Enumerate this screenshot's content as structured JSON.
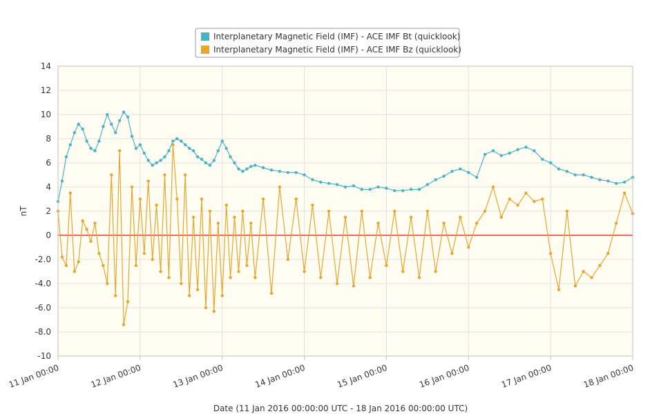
{
  "chart_data": {
    "type": "line",
    "title": "",
    "xlabel": "Date (11 Jan 2016 00:00:00 UTC - 18 Jan 2016 00:00:00 UTC)",
    "ylabel": "nT",
    "x_unit": "days since 11 Jan 2016 00:00 UTC",
    "xlim": [
      0,
      7
    ],
    "ylim": [
      -10,
      14
    ],
    "x_ticks": [
      0,
      1,
      2,
      3,
      4,
      5,
      6,
      7
    ],
    "x_tick_labels": [
      "11 Jan 00:00",
      "12 Jan 00:00",
      "13 Jan 00:00",
      "14 Jan 00:00",
      "15 Jan 00:00",
      "16 Jan 00:00",
      "17 Jan 00:00",
      "18 Jan 00:00"
    ],
    "y_ticks": [
      -10,
      -8,
      -6,
      -4,
      -2,
      0,
      2,
      4,
      6,
      8,
      10,
      12,
      14
    ],
    "y_tick_labels": [
      "-10",
      "-8.0",
      "-6.0",
      "-4.0",
      "-2.0",
      "0",
      "2",
      "4",
      "6",
      "8",
      "10",
      "12",
      "14"
    ],
    "grid": true,
    "legend_position": "top-center",
    "plot_background": "#fffdf1",
    "reference_line": {
      "y": 0,
      "color": "#ee3333"
    },
    "series": [
      {
        "name": "Interplanetary Magnetic Field (IMF) - ACE IMF Bt (quicklook)",
        "color": "#4bb1c4",
        "x": [
          0,
          0.05,
          0.1,
          0.15,
          0.2,
          0.25,
          0.3,
          0.35,
          0.4,
          0.45,
          0.5,
          0.55,
          0.6,
          0.65,
          0.7,
          0.75,
          0.8,
          0.85,
          0.9,
          0.95,
          1.0,
          1.05,
          1.1,
          1.15,
          1.2,
          1.25,
          1.3,
          1.35,
          1.4,
          1.45,
          1.5,
          1.55,
          1.6,
          1.65,
          1.7,
          1.75,
          1.8,
          1.85,
          1.9,
          1.95,
          2.0,
          2.05,
          2.1,
          2.15,
          2.2,
          2.25,
          2.3,
          2.35,
          2.4,
          2.5,
          2.6,
          2.7,
          2.8,
          2.9,
          3.0,
          3.1,
          3.2,
          3.3,
          3.4,
          3.5,
          3.6,
          3.7,
          3.8,
          3.9,
          4.0,
          4.1,
          4.2,
          4.3,
          4.4,
          4.5,
          4.6,
          4.7,
          4.8,
          4.9,
          5.0,
          5.1,
          5.2,
          5.3,
          5.4,
          5.5,
          5.6,
          5.7,
          5.8,
          5.9,
          6.0,
          6.1,
          6.2,
          6.3,
          6.4,
          6.5,
          6.6,
          6.7,
          6.8,
          6.9,
          7.0
        ],
        "values": [
          2.8,
          4.5,
          6.5,
          7.5,
          8.5,
          9.2,
          8.8,
          7.8,
          7.2,
          7.0,
          7.8,
          9.0,
          10.0,
          9.2,
          8.5,
          9.5,
          10.2,
          9.8,
          8.2,
          7.2,
          7.5,
          6.8,
          6.2,
          5.8,
          6.0,
          6.2,
          6.5,
          7.0,
          7.8,
          8.0,
          7.8,
          7.5,
          7.2,
          7.0,
          6.5,
          6.3,
          6.0,
          5.8,
          6.2,
          7.0,
          7.8,
          7.2,
          6.5,
          6.0,
          5.5,
          5.3,
          5.5,
          5.7,
          5.8,
          5.6,
          5.4,
          5.3,
          5.2,
          5.2,
          5.0,
          4.6,
          4.4,
          4.3,
          4.2,
          4.0,
          4.1,
          3.8,
          3.8,
          4.0,
          3.9,
          3.7,
          3.7,
          3.8,
          3.8,
          4.2,
          4.6,
          4.9,
          5.3,
          5.5,
          5.2,
          4.8,
          6.7,
          7.0,
          6.6,
          6.8,
          7.1,
          7.3,
          7.0,
          6.3,
          6.0,
          5.5,
          5.3,
          5.0,
          5.0,
          4.8,
          4.6,
          4.5,
          4.3,
          4.4,
          4.8
        ]
      },
      {
        "name": "Interplanetary Magnetic Field (IMF) - ACE IMF Bz (quicklook)",
        "color": "#e8a42b",
        "x": [
          0,
          0.05,
          0.1,
          0.15,
          0.2,
          0.25,
          0.3,
          0.35,
          0.4,
          0.45,
          0.5,
          0.55,
          0.6,
          0.65,
          0.7,
          0.75,
          0.8,
          0.85,
          0.9,
          0.95,
          1.0,
          1.05,
          1.1,
          1.15,
          1.2,
          1.25,
          1.3,
          1.35,
          1.4,
          1.45,
          1.5,
          1.55,
          1.6,
          1.65,
          1.7,
          1.75,
          1.8,
          1.85,
          1.9,
          1.95,
          2.0,
          2.05,
          2.1,
          2.15,
          2.2,
          2.25,
          2.3,
          2.35,
          2.4,
          2.5,
          2.6,
          2.7,
          2.8,
          2.9,
          3.0,
          3.1,
          3.2,
          3.3,
          3.4,
          3.5,
          3.6,
          3.7,
          3.8,
          3.9,
          4.0,
          4.1,
          4.2,
          4.3,
          4.4,
          4.5,
          4.6,
          4.7,
          4.8,
          4.9,
          5.0,
          5.1,
          5.2,
          5.3,
          5.4,
          5.5,
          5.6,
          5.7,
          5.8,
          5.9,
          6.0,
          6.1,
          6.2,
          6.3,
          6.4,
          6.5,
          6.6,
          6.7,
          6.8,
          6.9,
          7.0
        ],
        "values": [
          2.0,
          -1.8,
          -2.5,
          3.5,
          -3.0,
          -2.2,
          1.2,
          0.5,
          -0.5,
          1.0,
          -1.5,
          -2.5,
          -4.0,
          5.0,
          -5.0,
          7.0,
          -7.4,
          -5.5,
          4.0,
          -2.5,
          3.0,
          -1.5,
          4.5,
          -2.0,
          2.5,
          -3.0,
          5.0,
          -3.5,
          7.5,
          3.0,
          -4.0,
          5.0,
          -5.0,
          1.5,
          -4.5,
          3.0,
          -6.0,
          2.0,
          -6.3,
          1.0,
          -5.0,
          2.5,
          -3.5,
          1.5,
          -3.0,
          2.0,
          -2.5,
          1.0,
          -3.5,
          3.0,
          -4.8,
          4.0,
          -2.0,
          3.0,
          -3.0,
          2.5,
          -3.5,
          2.0,
          -4.0,
          1.5,
          -4.2,
          2.0,
          -3.5,
          1.0,
          -2.5,
          2.0,
          -3.0,
          1.5,
          -3.5,
          2.0,
          -3.0,
          1.0,
          -1.5,
          1.5,
          -1.0,
          1.0,
          2.0,
          4.0,
          1.5,
          3.0,
          2.5,
          3.5,
          2.8,
          3.0,
          -1.5,
          -4.5,
          2.0,
          -4.2,
          -3.0,
          -3.5,
          -2.5,
          -1.5,
          1.0,
          3.5,
          1.8
        ]
      }
    ]
  }
}
